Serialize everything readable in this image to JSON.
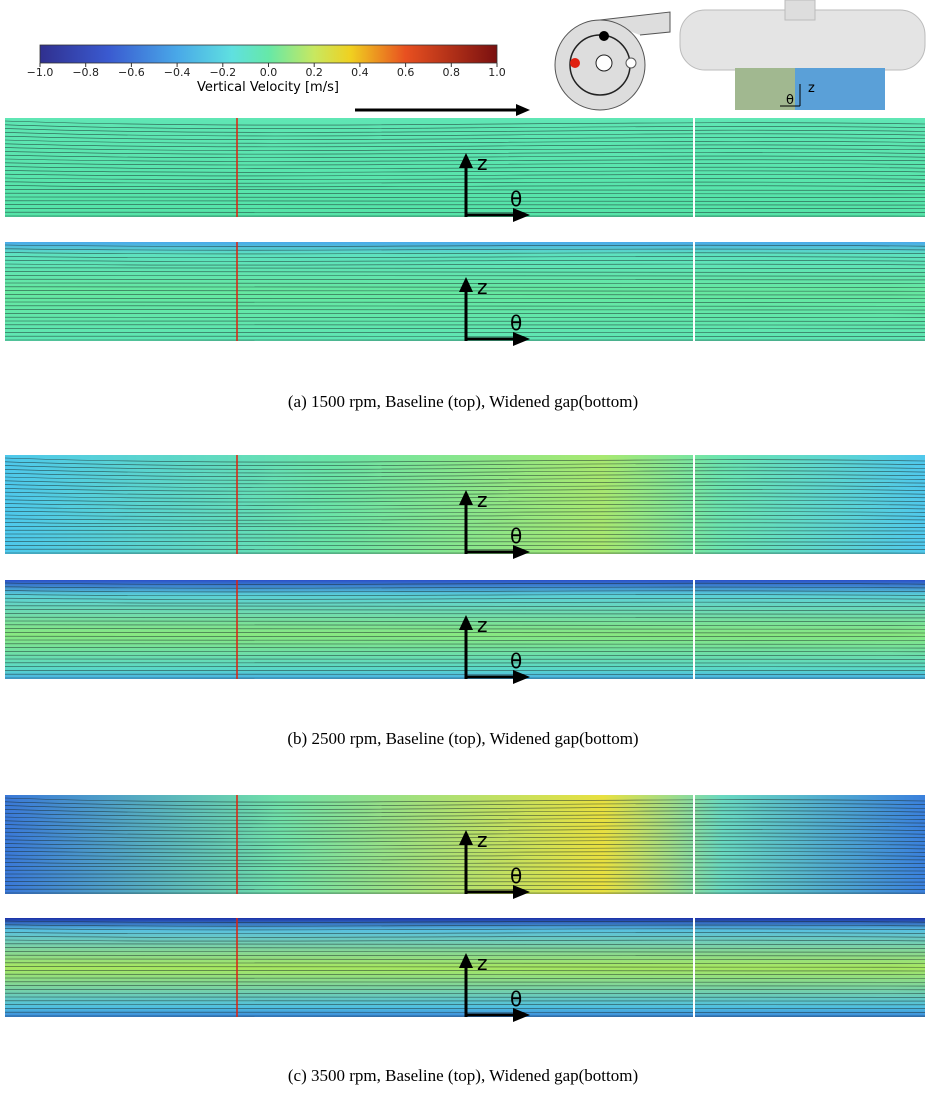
{
  "colorbar": {
    "label": "Vertical Velocity [m/s]",
    "range": [
      -1,
      1
    ],
    "ticks": [
      {
        "value": -1,
        "label": "−1.0"
      },
      {
        "value": -0.8,
        "label": "−0.8"
      },
      {
        "value": -0.6,
        "label": "−0.6"
      },
      {
        "value": -0.4,
        "label": "−0.4"
      },
      {
        "value": -0.2,
        "label": "−0.2"
      },
      {
        "value": 0,
        "label": "0.0"
      },
      {
        "value": 0.2,
        "label": "0.2"
      },
      {
        "value": 0.4,
        "label": "0.4"
      },
      {
        "value": 0.6,
        "label": "0.6"
      },
      {
        "value": 0.8,
        "label": "0.8"
      },
      {
        "value": 1,
        "label": "1.0"
      }
    ]
  },
  "axis_labels": {
    "z": "z",
    "theta": "θ"
  },
  "panels": [
    {
      "caption": "(a) 1500 rpm, Baseline (top), Widened gap(bottom)"
    },
    {
      "caption": "(b) 2500 rpm, Baseline (top), Widened gap(bottom)"
    },
    {
      "caption": "(c) 3500 rpm, Baseline (top), Widened gap(bottom)"
    }
  ]
}
